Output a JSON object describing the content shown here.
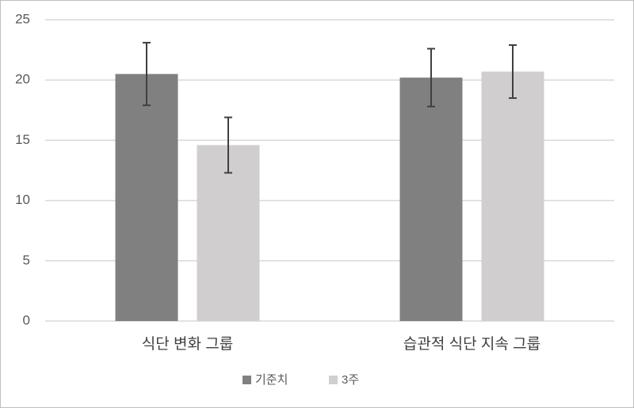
{
  "chart_data": {
    "type": "bar",
    "categories": [
      "식단 변화 그룹",
      "습관적 식단 지속 그룹"
    ],
    "series": [
      {
        "name": "기준치",
        "color": "#808080",
        "values": [
          20.5,
          20.2
        ],
        "errors": [
          2.6,
          2.4
        ]
      },
      {
        "name": "3주",
        "color": "#d0cecf",
        "values": [
          14.6,
          20.7
        ],
        "errors": [
          2.3,
          2.2
        ]
      }
    ],
    "ylim": [
      0,
      25
    ],
    "yticks": [
      0,
      5,
      10,
      15,
      20,
      25
    ],
    "grid": true,
    "legend": "bottom"
  }
}
